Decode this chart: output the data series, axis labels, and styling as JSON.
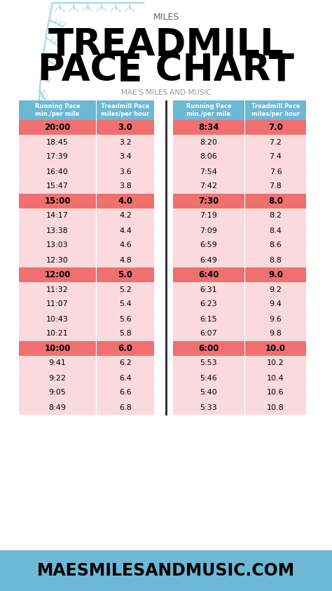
{
  "title_top": "MILES",
  "title_main": "TREADMILL\nPACE CHART",
  "subtitle": "MAE'S MILES AND MUSIC",
  "footer": "MAESMILESANDMUSIC.COM",
  "header_col1": "Running Pace\nmin./per mile",
  "header_col2": "Treadmill Pace\nmiles/per hour",
  "bg_color": "#ffffff",
  "footer_bg": "#6db8d4",
  "header_bg": "#6db8d4",
  "highlight_color": "#f07070",
  "light_color": "#fadadd",
  "divider_color": "#222222",
  "left_data": [
    [
      "20:00",
      "3.0",
      true
    ],
    [
      "18:45",
      "3.2",
      false
    ],
    [
      "17:39",
      "3.4",
      false
    ],
    [
      "16:40",
      "3.6",
      false
    ],
    [
      "15:47",
      "3.8",
      false
    ],
    [
      "15:00",
      "4.0",
      true
    ],
    [
      "14:17",
      "4.2",
      false
    ],
    [
      "13:38",
      "4.4",
      false
    ],
    [
      "13:03",
      "4.6",
      false
    ],
    [
      "12:30",
      "4.8",
      false
    ],
    [
      "12:00",
      "5.0",
      true
    ],
    [
      "11:32",
      "5.2",
      false
    ],
    [
      "11:07",
      "5.4",
      false
    ],
    [
      "10:43",
      "5.6",
      false
    ],
    [
      "10:21",
      "5.8",
      false
    ],
    [
      "10:00",
      "6.0",
      true
    ],
    [
      "9:41",
      "6.2",
      false
    ],
    [
      "9:22",
      "6.4",
      false
    ],
    [
      "9:05",
      "6.6",
      false
    ],
    [
      "8:49",
      "6.8",
      false
    ]
  ],
  "right_data": [
    [
      "8:34",
      "7.0",
      true
    ],
    [
      "8:20",
      "7.2",
      false
    ],
    [
      "8:06",
      "7.4",
      false
    ],
    [
      "7:54",
      "7.6",
      false
    ],
    [
      "7:42",
      "7.8",
      false
    ],
    [
      "7:30",
      "8.0",
      true
    ],
    [
      "7:19",
      "8.2",
      false
    ],
    [
      "7:09",
      "8.4",
      false
    ],
    [
      "6:59",
      "8.6",
      false
    ],
    [
      "6:49",
      "8.8",
      false
    ],
    [
      "6:40",
      "9.0",
      true
    ],
    [
      "6:31",
      "9.2",
      false
    ],
    [
      "6:23",
      "9.4",
      false
    ],
    [
      "6:15",
      "9.6",
      false
    ],
    [
      "6:07",
      "9.8",
      false
    ],
    [
      "6:00",
      "10.0",
      true
    ],
    [
      "5:53",
      "10.2",
      false
    ],
    [
      "5:46",
      "10.4",
      false
    ],
    [
      "5:40",
      "10.6",
      false
    ],
    [
      "5:33",
      "10.8",
      false
    ]
  ]
}
